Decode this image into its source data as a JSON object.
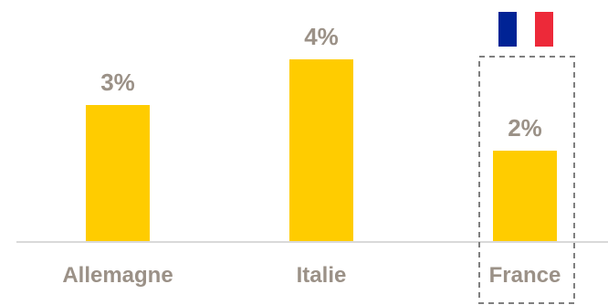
{
  "chart_data": {
    "type": "bar",
    "categories": [
      "Allemagne",
      "Italie",
      "France"
    ],
    "values": [
      3,
      4,
      2
    ],
    "value_labels": [
      "3%",
      "4%",
      "2%"
    ],
    "title": "",
    "xlabel": "",
    "ylabel": "",
    "ylim": [
      0,
      4.2
    ],
    "grid": false,
    "legend": "none",
    "highlight_category": "France",
    "colors": {
      "bar": "#ffcc00",
      "label": "#9b9187",
      "axis": "#d9d9d9",
      "highlight_box": "#7f7f7f"
    }
  },
  "flag": {
    "icon": "french-flag-icon",
    "colors": [
      "#002395",
      "#ffffff",
      "#ed2939"
    ]
  }
}
